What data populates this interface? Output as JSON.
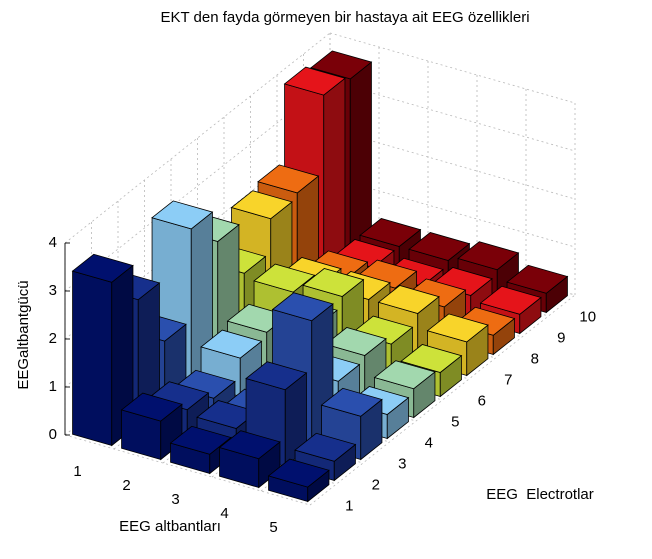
{
  "chart_data": {
    "type": "bar3d",
    "title": "EKT den fayda görmeyen bir hastaya ait EEG özellikleri",
    "x_label": "EEG altbantları",
    "y_label": "EEG  Electrotlar",
    "z_label": "EEGaltbantgücü",
    "categories": [
      1,
      2,
      3,
      4,
      5
    ],
    "y_categories": [
      1,
      2,
      3,
      4,
      5,
      6,
      7,
      8,
      9,
      10
    ],
    "zlim": [
      0,
      4
    ],
    "zticks": [
      0,
      1,
      2,
      3,
      4
    ],
    "grid": true,
    "series": [
      {
        "name": "1",
        "color": "#00106e",
        "values": [
          3.4,
          0.8,
          0.4,
          0.6,
          0.3
        ]
      },
      {
        "name": "2",
        "color": "#162f8c",
        "values": [
          2.6,
          0.6,
          0.5,
          1.6,
          0.4
        ]
      },
      {
        "name": "3",
        "color": "#2a4fae",
        "values": [
          1.3,
          0.4,
          0.3,
          2.6,
          0.9
        ]
      },
      {
        "name": "4",
        "color": "#8ccdf6",
        "values": [
          3.2,
          0.8,
          0.3,
          0.9,
          0.5
        ]
      },
      {
        "name": "5",
        "color": "#a2d8ae",
        "values": [
          2.5,
          0.9,
          1.3,
          1.0,
          0.6
        ]
      },
      {
        "name": "6",
        "color": "#cde23a",
        "values": [
          1.4,
          1.3,
          1.5,
          0.8,
          0.5
        ]
      },
      {
        "name": "7",
        "color": "#f8d42a",
        "values": [
          2.1,
          1.0,
          1.0,
          1.0,
          0.7
        ]
      },
      {
        "name": "8",
        "color": "#ee6c12",
        "values": [
          2.2,
          0.7,
          0.8,
          0.7,
          0.4
        ]
      },
      {
        "name": "9",
        "color": "#e5141a",
        "values": [
          3.8,
          0.5,
          0.4,
          0.5,
          0.4
        ]
      },
      {
        "name": "10",
        "color": "#7a0008",
        "values": [
          3.7,
          0.5,
          0.5,
          0.6,
          0.4
        ]
      }
    ]
  }
}
